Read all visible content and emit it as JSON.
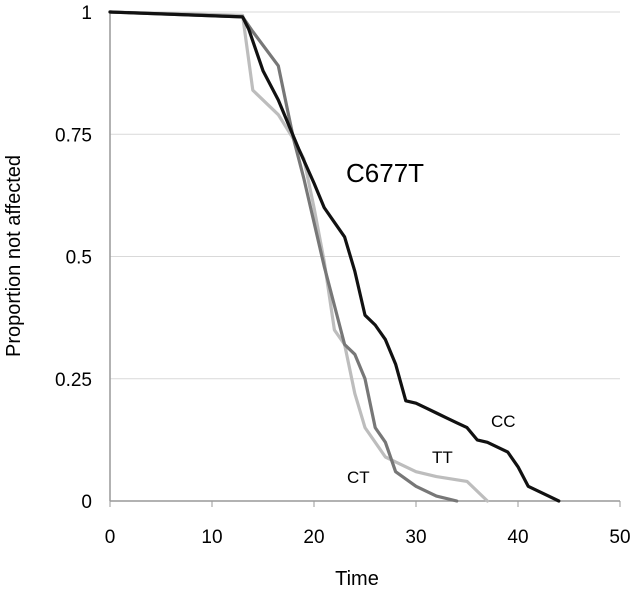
{
  "chart_data": {
    "type": "line",
    "title": "",
    "annotation": "C677T",
    "xlabel": "Time",
    "ylabel": "Proportion not affected",
    "xlim": [
      0,
      50
    ],
    "ylim": [
      0,
      1
    ],
    "xticks": [
      0,
      10,
      20,
      30,
      40,
      50
    ],
    "yticks": [
      0,
      0.25,
      0.5,
      0.75,
      1
    ],
    "xtick_labels": [
      "0",
      "10",
      "20",
      "30",
      "40",
      "50"
    ],
    "ytick_labels": [
      "0",
      "0.25",
      "0.5",
      "0.75",
      "1"
    ],
    "grid": "horizontal",
    "legend": "none (series labeled inline)",
    "series": [
      {
        "name": "CC",
        "color": "#111111",
        "points": [
          [
            0,
            1
          ],
          [
            13,
            0.99
          ],
          [
            13.6,
            0.965
          ],
          [
            15,
            0.88
          ],
          [
            16.5,
            0.82
          ],
          [
            17.5,
            0.77
          ],
          [
            18.5,
            0.72
          ],
          [
            20,
            0.65
          ],
          [
            21,
            0.6
          ],
          [
            22,
            0.57
          ],
          [
            23,
            0.54
          ],
          [
            24,
            0.47
          ],
          [
            25,
            0.38
          ],
          [
            26,
            0.36
          ],
          [
            27,
            0.33
          ],
          [
            28,
            0.28
          ],
          [
            29,
            0.205
          ],
          [
            30,
            0.2
          ],
          [
            31,
            0.19
          ],
          [
            32,
            0.18
          ],
          [
            33,
            0.17
          ],
          [
            34,
            0.16
          ],
          [
            35,
            0.15
          ],
          [
            36,
            0.125
          ],
          [
            37,
            0.12
          ],
          [
            38,
            0.11
          ],
          [
            39,
            0.1
          ],
          [
            40,
            0.07
          ],
          [
            41,
            0.03
          ],
          [
            42,
            0.02
          ],
          [
            43,
            0.01
          ],
          [
            44,
            0
          ]
        ]
      },
      {
        "name": "CT",
        "color": "#777777",
        "points": [
          [
            0,
            1
          ],
          [
            13,
            0.99
          ],
          [
            14,
            0.96
          ],
          [
            16.5,
            0.89
          ],
          [
            18,
            0.74
          ],
          [
            19,
            0.66
          ],
          [
            20,
            0.57
          ],
          [
            21,
            0.48
          ],
          [
            22,
            0.4
          ],
          [
            23,
            0.32
          ],
          [
            24,
            0.3
          ],
          [
            25,
            0.25
          ],
          [
            26,
            0.15
          ],
          [
            27,
            0.12
          ],
          [
            28,
            0.06
          ],
          [
            30,
            0.03
          ],
          [
            32,
            0.01
          ],
          [
            34,
            0
          ]
        ]
      },
      {
        "name": "TT",
        "color": "#bdbdbd",
        "points": [
          [
            0,
            1
          ],
          [
            13,
            0.993
          ],
          [
            14,
            0.84
          ],
          [
            16.5,
            0.79
          ],
          [
            18,
            0.74
          ],
          [
            19,
            0.7
          ],
          [
            20,
            0.6
          ],
          [
            21,
            0.49
          ],
          [
            22,
            0.35
          ],
          [
            23,
            0.32
          ],
          [
            24,
            0.22
          ],
          [
            25,
            0.15
          ],
          [
            27,
            0.09
          ],
          [
            28,
            0.08
          ],
          [
            30,
            0.06
          ],
          [
            32,
            0.05
          ],
          [
            35,
            0.04
          ],
          [
            37,
            0
          ]
        ]
      }
    ],
    "labels": {
      "CC": "CC",
      "CT": "CT",
      "TT": "TT"
    }
  }
}
